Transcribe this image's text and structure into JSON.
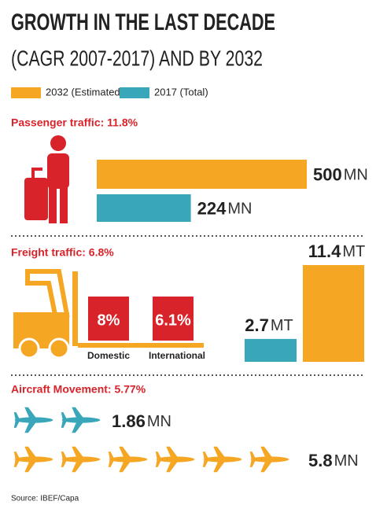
{
  "title": "GROWTH IN THE LAST DECADE",
  "subtitle": "(CAGR 2007-2017) AND BY 2032",
  "legend": [
    {
      "name": "2032 (Estimated)",
      "color": "#f5a623"
    },
    {
      "name": "2017 (Total)",
      "color": "#3aa6b9"
    }
  ],
  "passenger": {
    "label": "Passenger traffic: 11.8%",
    "values": [
      500,
      224
    ],
    "unit": "MN"
  },
  "freight": {
    "label": "Freight traffic:  6.8%",
    "values": [
      11.4,
      2.7
    ],
    "unit": "MT",
    "boxes": [
      {
        "text": "8%",
        "name": "Domestic"
      },
      {
        "text": "6.1%",
        "name": "International"
      }
    ]
  },
  "aircraft": {
    "label": "Aircraft Movement: 5.77%",
    "values": [
      5.8,
      1.86
    ],
    "unit": "MN"
  },
  "source": "Source: IBEF/Capa"
}
